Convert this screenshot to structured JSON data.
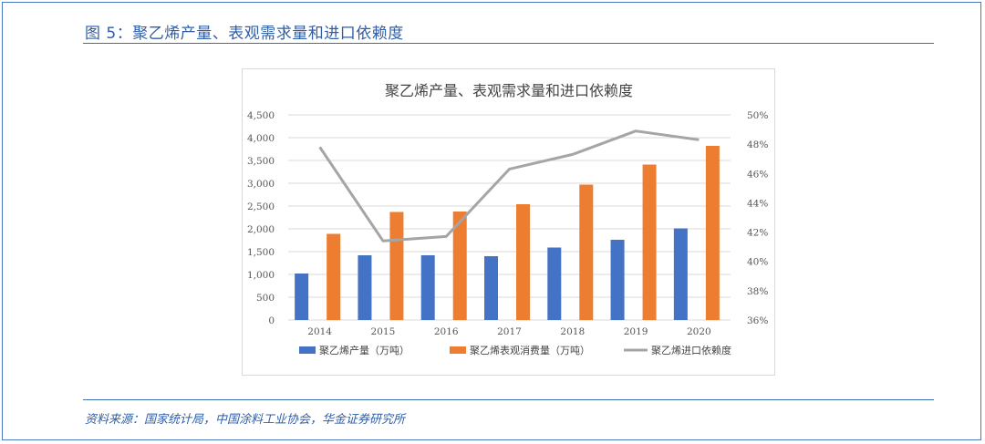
{
  "figure_label": "图 5：聚乙烯产量、表观需求量和进口依赖度",
  "source_note": "资料来源：国家统计局，中国涂料工业协会，华金证券研究所",
  "chart_data": {
    "type": "bar",
    "title": "聚乙烯产量、表观需求量和进口依赖度",
    "categories": [
      "2014",
      "2015",
      "2016",
      "2017",
      "2018",
      "2019",
      "2020"
    ],
    "series": [
      {
        "name": "聚乙烯产量（万吨）",
        "type": "bar",
        "axis": "left",
        "color": "#4472c4",
        "values": [
          1020,
          1420,
          1420,
          1400,
          1590,
          1760,
          2010
        ]
      },
      {
        "name": "聚乙烯表观消费量（万吨）",
        "type": "bar",
        "axis": "left",
        "color": "#ed7d31",
        "values": [
          1890,
          2370,
          2380,
          2540,
          2970,
          3410,
          3820
        ]
      },
      {
        "name": "聚乙烯进口依赖度",
        "type": "line",
        "axis": "right",
        "color": "#a5a5a5",
        "values": [
          47.8,
          41.4,
          41.7,
          46.3,
          47.3,
          48.9,
          48.3
        ]
      }
    ],
    "y_left": {
      "min": 0,
      "max": 4500,
      "ticks": [
        "0",
        "500",
        "1,000",
        "1,500",
        "2,000",
        "2,500",
        "3,000",
        "3,500",
        "4,000",
        "4,500"
      ]
    },
    "y_right": {
      "min": 36,
      "max": 50,
      "ticks": [
        "36%",
        "38%",
        "40%",
        "42%",
        "44%",
        "46%",
        "48%",
        "50%"
      ]
    },
    "grid": true,
    "legend_position": "bottom"
  }
}
